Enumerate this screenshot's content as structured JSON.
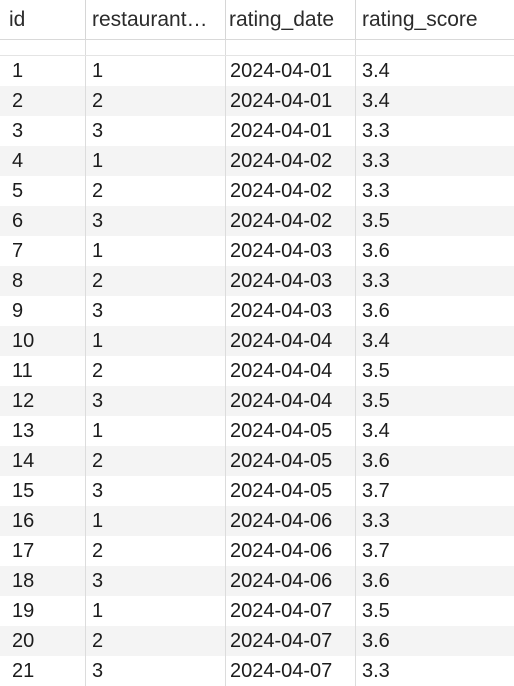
{
  "table": {
    "columns": [
      "id",
      "restaurant…",
      "rating_date",
      "rating_score"
    ],
    "rows": [
      [
        "1",
        "1",
        "2024-04-01",
        "3.4"
      ],
      [
        "2",
        "2",
        "2024-04-01",
        "3.4"
      ],
      [
        "3",
        "3",
        "2024-04-01",
        "3.3"
      ],
      [
        "4",
        "1",
        "2024-04-02",
        "3.3"
      ],
      [
        "5",
        "2",
        "2024-04-02",
        "3.3"
      ],
      [
        "6",
        "3",
        "2024-04-02",
        "3.5"
      ],
      [
        "7",
        "1",
        "2024-04-03",
        "3.6"
      ],
      [
        "8",
        "2",
        "2024-04-03",
        "3.3"
      ],
      [
        "9",
        "3",
        "2024-04-03",
        "3.6"
      ],
      [
        "10",
        "1",
        "2024-04-04",
        "3.4"
      ],
      [
        "11",
        "2",
        "2024-04-04",
        "3.5"
      ],
      [
        "12",
        "3",
        "2024-04-04",
        "3.5"
      ],
      [
        "13",
        "1",
        "2024-04-05",
        "3.4"
      ],
      [
        "14",
        "2",
        "2024-04-05",
        "3.6"
      ],
      [
        "15",
        "3",
        "2024-04-05",
        "3.7"
      ],
      [
        "16",
        "1",
        "2024-04-06",
        "3.3"
      ],
      [
        "17",
        "2",
        "2024-04-06",
        "3.7"
      ],
      [
        "18",
        "3",
        "2024-04-06",
        "3.6"
      ],
      [
        "19",
        "1",
        "2024-04-07",
        "3.5"
      ],
      [
        "20",
        "2",
        "2024-04-07",
        "3.6"
      ],
      [
        "21",
        "3",
        "2024-04-07",
        "3.3"
      ]
    ]
  }
}
